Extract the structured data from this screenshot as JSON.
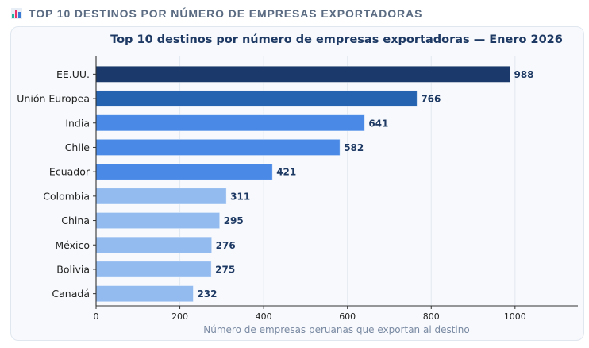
{
  "header": {
    "icon": "bar-chart-icon",
    "title": "TOP 10 DESTINOS POR NÚMERO DE EMPRESAS EXPORTADORAS"
  },
  "colors": {
    "tier1": "#1b3a6b",
    "tier2": "#2563b0",
    "tier3": "#4a8ae6",
    "tier4": "#93bbf0",
    "value_label": "#1e3a64"
  },
  "chart_data": {
    "type": "bar",
    "orientation": "horizontal",
    "title": "Top 10 destinos por número de empresas exportadoras — Enero 2026",
    "xlabel": "Número de empresas peruanas que exportan al destino",
    "ylabel": "",
    "categories": [
      "EE.UU.",
      "Unión Europea",
      "India",
      "Chile",
      "Ecuador",
      "Colombia",
      "China",
      "México",
      "Bolivia",
      "Canadá"
    ],
    "values": [
      988,
      766,
      641,
      582,
      421,
      311,
      295,
      276,
      275,
      232
    ],
    "color_tiers": [
      "tier1",
      "tier2",
      "tier3",
      "tier3",
      "tier3",
      "tier4",
      "tier4",
      "tier4",
      "tier4",
      "tier4"
    ],
    "xlim": [
      0,
      1150
    ],
    "xticks": [
      0,
      200,
      400,
      600,
      800,
      1000
    ],
    "xtick_labels": [
      "0",
      "200",
      "400",
      "600",
      "800",
      "1000"
    ],
    "grid": "vertical",
    "data_labels": true,
    "legend": "none"
  }
}
